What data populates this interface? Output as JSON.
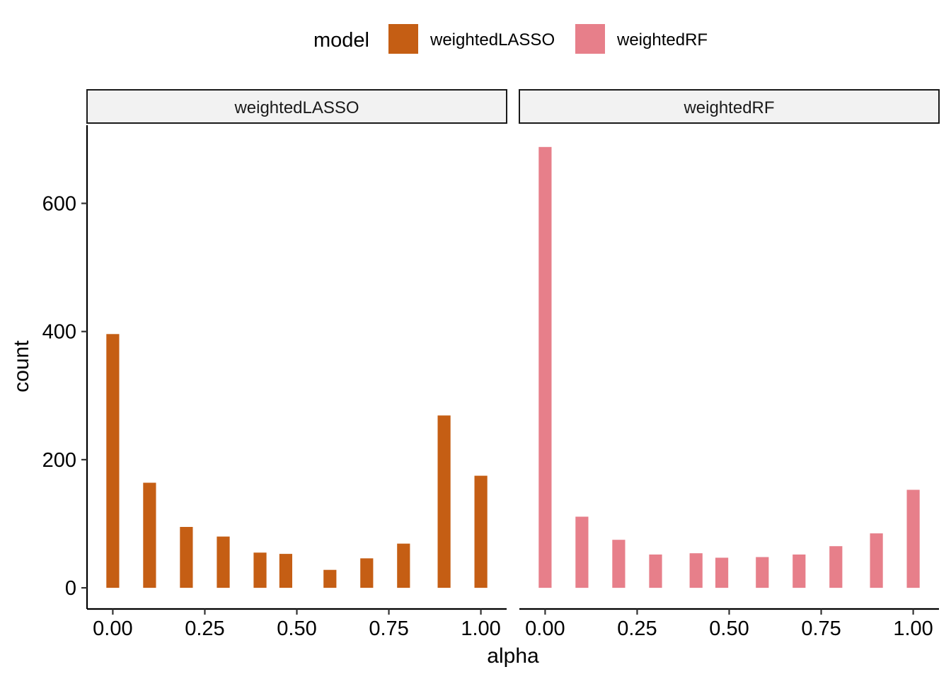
{
  "chart_data": {
    "type": "bar",
    "xlabel": "alpha",
    "ylabel": "count",
    "legend": {
      "title": "model",
      "position": "top",
      "items": [
        {
          "label": "weightedLASSO",
          "color": "#C55E14"
        },
        {
          "label": "weightedRF",
          "color": "#E77F8A"
        }
      ]
    },
    "xlim": [
      -0.07,
      1.07
    ],
    "ylim": [
      -33,
      722
    ],
    "x_ticks": [
      0,
      0.25,
      0.5,
      0.75,
      1.0
    ],
    "x_tick_labels": [
      "0.00",
      "0.25",
      "0.50",
      "0.75",
      "1.00"
    ],
    "y_ticks": [
      0,
      200,
      400,
      600
    ],
    "y_tick_labels": [
      "0",
      "200",
      "400",
      "600"
    ],
    "bar_width": 0.035,
    "panels": [
      {
        "strip": "weightedLASSO",
        "color": "#C55E14",
        "x": [
          0.0,
          0.1,
          0.2,
          0.3,
          0.4,
          0.47,
          0.59,
          0.69,
          0.79,
          0.9,
          1.0
        ],
        "values": [
          396,
          164,
          95,
          80,
          55,
          53,
          28,
          46,
          69,
          269,
          175
        ]
      },
      {
        "strip": "weightedRF",
        "color": "#E77F8A",
        "x": [
          0.0,
          0.1,
          0.2,
          0.3,
          0.41,
          0.48,
          0.59,
          0.69,
          0.79,
          0.9,
          1.0
        ],
        "values": [
          688,
          111,
          75,
          52,
          54,
          47,
          48,
          52,
          65,
          85,
          153
        ]
      }
    ],
    "grid": false
  }
}
